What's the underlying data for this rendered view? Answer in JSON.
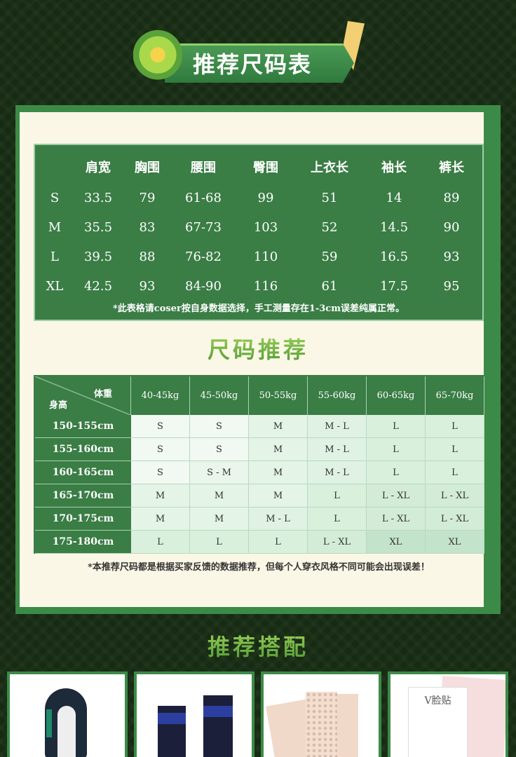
{
  "banner": {
    "title": "推荐尺码表"
  },
  "size_chart": {
    "headers": [
      "",
      "肩宽",
      "胸围",
      "腰围",
      "臀围",
      "上衣长",
      "袖长",
      "裤长"
    ],
    "rows": [
      [
        "S",
        "33.5",
        "79",
        "61-68",
        "99",
        "51",
        "14",
        "89"
      ],
      [
        "M",
        "35.5",
        "83",
        "67-73",
        "103",
        "52",
        "14.5",
        "90"
      ],
      [
        "L",
        "39.5",
        "88",
        "76-82",
        "110",
        "59",
        "16.5",
        "93"
      ],
      [
        "XL",
        "42.5",
        "93",
        "84-90",
        "116",
        "61",
        "17.5",
        "95"
      ]
    ],
    "note": "*此表格请coser按自身数据选择，手工测量存在1-3cm误差纯属正常。"
  },
  "recommend": {
    "title": "尺码推荐",
    "corner_weight": "体重",
    "corner_height": "身高",
    "weights": [
      "40-45kg",
      "45-50kg",
      "50-55kg",
      "55-60kg",
      "60-65kg",
      "65-70kg"
    ],
    "rows": [
      {
        "height": "150-155cm",
        "sizes": [
          "S",
          "S",
          "M",
          "M - L",
          "L",
          "L"
        ]
      },
      {
        "height": "155-160cm",
        "sizes": [
          "S",
          "S",
          "M",
          "M - L",
          "L",
          "L"
        ]
      },
      {
        "height": "160-165cm",
        "sizes": [
          "S",
          "S - M",
          "M",
          "M - L",
          "L",
          "L"
        ]
      },
      {
        "height": "165-170cm",
        "sizes": [
          "M",
          "M",
          "M",
          "L",
          "L - XL",
          "L - XL"
        ]
      },
      {
        "height": "170-175cm",
        "sizes": [
          "M",
          "M",
          "M - L",
          "L",
          "L - XL",
          "L - XL"
        ]
      },
      {
        "height": "175-180cm",
        "sizes": [
          "L",
          "L",
          "L",
          "L - XL",
          "XL",
          "XL"
        ]
      }
    ],
    "note": "*本推荐尺码都是根据买家反馈的数据推荐，但每个人穿衣风格不同可能会出现误差！"
  },
  "matching": {
    "title": "推荐搭配",
    "products": [
      "wig",
      "boots",
      "binder",
      "face-tape"
    ],
    "face_tape_label": "V脸贴"
  }
}
